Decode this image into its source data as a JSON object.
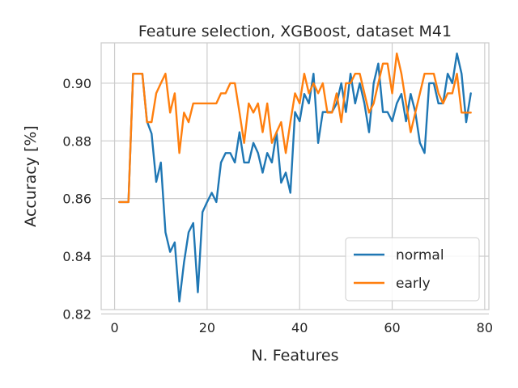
{
  "chart_data": {
    "type": "line",
    "title": "Feature selection, XGBoost, dataset M41",
    "xlabel": "N. Features",
    "ylabel": "Accuracy [%]",
    "xlim": [
      -2.9,
      80.9
    ],
    "ylim": [
      0.8215,
      0.914
    ],
    "x_ticks": [
      0,
      20,
      40,
      60,
      80
    ],
    "y_ticks": [
      0.82,
      0.84,
      0.86,
      0.88,
      0.9
    ],
    "x_tick_labels": [
      "0",
      "20",
      "40",
      "60",
      "80"
    ],
    "y_tick_labels": [
      "0.82",
      "0.84",
      "0.86",
      "0.88",
      "0.90"
    ],
    "grid": true,
    "legend_position": "lower-right",
    "x": [
      1,
      2,
      3,
      4,
      5,
      6,
      7,
      8,
      9,
      10,
      11,
      12,
      13,
      14,
      15,
      16,
      17,
      18,
      19,
      20,
      21,
      22,
      23,
      24,
      25,
      26,
      27,
      28,
      29,
      30,
      31,
      32,
      33,
      34,
      35,
      36,
      37,
      38,
      39,
      40,
      41,
      42,
      43,
      44,
      45,
      46,
      47,
      48,
      49,
      50,
      51,
      52,
      53,
      54,
      55,
      56,
      57,
      58,
      59,
      60,
      61,
      62,
      63,
      64,
      65,
      66,
      67,
      68,
      69,
      70,
      71,
      72,
      73,
      74,
      75,
      76,
      77
    ],
    "series": [
      {
        "name": "normal",
        "color": "#1f77b4",
        "values": [
          0.8588,
          0.8588,
          0.8588,
          0.9033,
          0.9033,
          0.9033,
          0.8868,
          0.8825,
          0.8658,
          0.8725,
          0.8483,
          0.8415,
          0.8448,
          0.8243,
          0.8378,
          0.8483,
          0.8515,
          0.8275,
          0.8553,
          0.8588,
          0.862,
          0.8588,
          0.8725,
          0.8758,
          0.8758,
          0.8725,
          0.883,
          0.8725,
          0.8725,
          0.8793,
          0.8758,
          0.869,
          0.8758,
          0.8725,
          0.883,
          0.8655,
          0.869,
          0.862,
          0.89,
          0.8868,
          0.8963,
          0.893,
          0.9033,
          0.8793,
          0.89,
          0.89,
          0.89,
          0.893,
          0.9,
          0.89,
          0.9033,
          0.893,
          0.9,
          0.893,
          0.883,
          0.9,
          0.9068,
          0.89,
          0.89,
          0.8868,
          0.893,
          0.8963,
          0.8868,
          0.8963,
          0.89,
          0.8793,
          0.8758,
          0.9,
          0.9,
          0.893,
          0.893,
          0.9033,
          0.9,
          0.9103,
          0.9033,
          0.8865,
          0.8965
        ]
      },
      {
        "name": "early",
        "color": "#ff7f0e",
        "values": [
          0.8588,
          0.8588,
          0.8588,
          0.9033,
          0.9033,
          0.9033,
          0.8865,
          0.8865,
          0.8965,
          0.9,
          0.9033,
          0.8898,
          0.8965,
          0.8758,
          0.8898,
          0.8865,
          0.893,
          0.893,
          0.893,
          0.893,
          0.893,
          0.893,
          0.8965,
          0.8965,
          0.9,
          0.9,
          0.8898,
          0.8793,
          0.893,
          0.8898,
          0.893,
          0.883,
          0.893,
          0.8793,
          0.883,
          0.8865,
          0.8758,
          0.8865,
          0.8965,
          0.893,
          0.9033,
          0.8965,
          0.9,
          0.8965,
          0.9,
          0.8898,
          0.8898,
          0.8965,
          0.8865,
          0.9,
          0.9,
          0.9033,
          0.9033,
          0.8965,
          0.8898,
          0.893,
          0.9,
          0.9068,
          0.9068,
          0.8965,
          0.9103,
          0.9033,
          0.893,
          0.883,
          0.8898,
          0.8965,
          0.9033,
          0.9033,
          0.9033,
          0.8965,
          0.893,
          0.8965,
          0.8965,
          0.9033,
          0.8898,
          0.8898,
          0.8898
        ]
      }
    ]
  }
}
